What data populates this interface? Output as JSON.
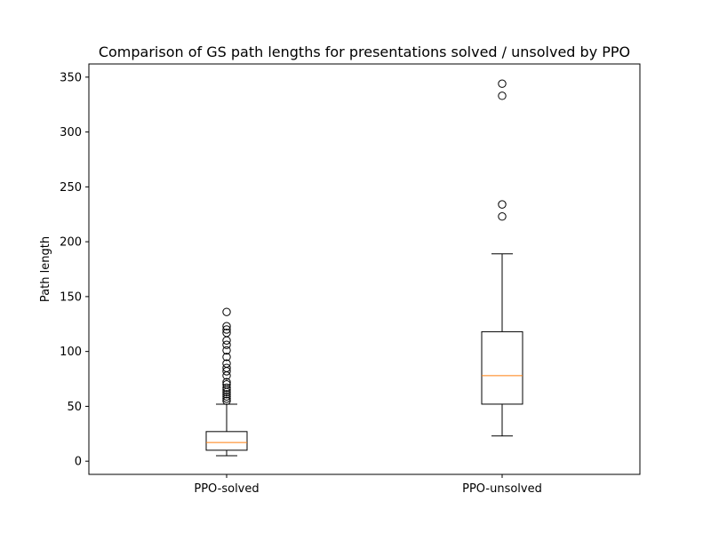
{
  "chart_data": {
    "type": "box",
    "title": "Comparison of GS path lengths for presentations solved / unsolved by PPO",
    "xlabel": "",
    "ylabel": "Path length",
    "ylim": [
      -12,
      362
    ],
    "yticks": [
      0,
      50,
      100,
      150,
      200,
      250,
      300,
      350
    ],
    "grid": false,
    "categories": [
      "PPO-solved",
      "PPO-unsolved"
    ],
    "boxes": [
      {
        "category": "PPO-solved",
        "whisker_low": 5,
        "q1": 10,
        "median": 17,
        "q3": 27,
        "whisker_high": 52,
        "outliers": [
          55,
          57,
          59,
          61,
          63,
          65,
          67,
          70,
          72,
          78,
          82,
          85,
          89,
          95,
          101,
          106,
          110,
          117,
          120,
          123,
          136
        ]
      },
      {
        "category": "PPO-unsolved",
        "whisker_low": 23,
        "q1": 52,
        "median": 78,
        "q3": 118,
        "whisker_high": 189,
        "outliers": [
          223,
          234,
          333,
          344
        ]
      }
    ],
    "colors": {
      "box": "#000000",
      "median": "#ff7f0e",
      "outlier": "#000000"
    }
  }
}
